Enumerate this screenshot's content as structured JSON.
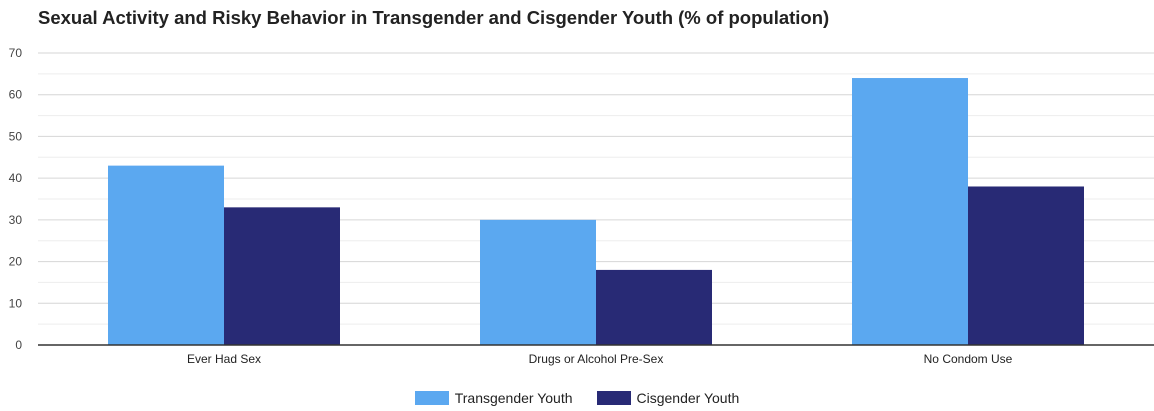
{
  "chart_data": {
    "type": "bar",
    "title": "Sexual Activity and Risky Behavior in Transgender and Cisgender Youth (% of population)",
    "xlabel": "",
    "ylabel": "",
    "categories": [
      "Ever Had Sex",
      "Drugs or Alcohol Pre-Sex",
      "No Condom Use"
    ],
    "series": [
      {
        "name": "Transgender Youth",
        "color": "#5ba8f0",
        "values": [
          43,
          30,
          64
        ]
      },
      {
        "name": "Cisgender Youth",
        "color": "#282a75",
        "values": [
          33,
          18,
          38
        ]
      }
    ],
    "ylim": [
      0,
      70
    ],
    "yticks": [
      0,
      10,
      20,
      30,
      40,
      50,
      60,
      70
    ],
    "grid": true,
    "legend_position": "bottom"
  }
}
